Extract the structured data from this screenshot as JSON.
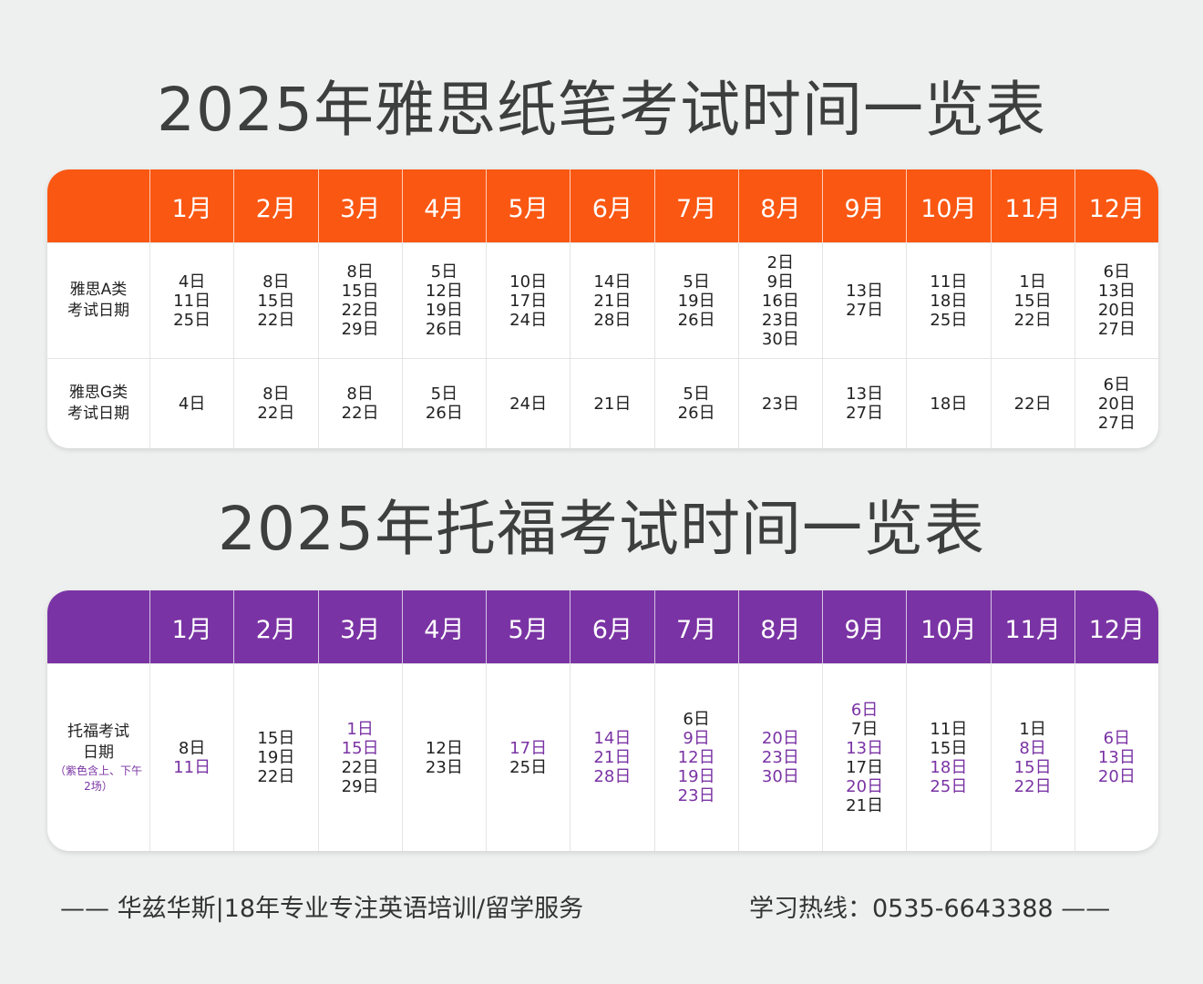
{
  "ielts": {
    "title": "2025年雅思纸笔考试时间一览表",
    "months": [
      "1月",
      "2月",
      "3月",
      "4月",
      "5月",
      "6月",
      "7月",
      "8月",
      "9月",
      "10月",
      "11月",
      "12月"
    ],
    "rows": [
      {
        "label_line1": "雅思A类",
        "label_line2": "考试日期",
        "cells": [
          [
            "4日",
            "11日",
            "25日"
          ],
          [
            "8日",
            "15日",
            "22日"
          ],
          [
            "8日",
            "15日",
            "22日",
            "29日"
          ],
          [
            "5日",
            "12日",
            "19日",
            "26日"
          ],
          [
            "10日",
            "17日",
            "24日"
          ],
          [
            "14日",
            "21日",
            "28日"
          ],
          [
            "5日",
            "19日",
            "26日"
          ],
          [
            "2日",
            "9日",
            "16日",
            "23日",
            "30日"
          ],
          [
            "13日",
            "27日"
          ],
          [
            "11日",
            "18日",
            "25日"
          ],
          [
            "1日",
            "15日",
            "22日"
          ],
          [
            "6日",
            "13日",
            "20日",
            "27日"
          ]
        ]
      },
      {
        "label_line1": "雅思G类",
        "label_line2": "考试日期",
        "cells": [
          [
            "4日"
          ],
          [
            "8日",
            "22日"
          ],
          [
            "8日",
            "22日"
          ],
          [
            "5日",
            "26日"
          ],
          [
            "24日"
          ],
          [
            "21日"
          ],
          [
            "5日",
            "26日"
          ],
          [
            "23日"
          ],
          [
            "13日",
            "27日"
          ],
          [
            "18日"
          ],
          [
            "22日"
          ],
          [
            "6日",
            "20日",
            "27日"
          ]
        ]
      }
    ]
  },
  "toefl": {
    "title": "2025年托福考试时间一览表",
    "months": [
      "1月",
      "2月",
      "3月",
      "4月",
      "5月",
      "6月",
      "7月",
      "8月",
      "9月",
      "10月",
      "11月",
      "12月"
    ],
    "row": {
      "label_line1": "托福考试",
      "label_line2": "日期",
      "note_line1": "（紫色含上、下午",
      "note_line2": "2场）",
      "cells": [
        [
          {
            "d": "8日",
            "p": false
          },
          {
            "d": "11日",
            "p": true
          }
        ],
        [
          {
            "d": "15日",
            "p": false
          },
          {
            "d": "19日",
            "p": false
          },
          {
            "d": "22日",
            "p": false
          }
        ],
        [
          {
            "d": "1日",
            "p": true
          },
          {
            "d": "15日",
            "p": true
          },
          {
            "d": "22日",
            "p": false
          },
          {
            "d": "29日",
            "p": false
          }
        ],
        [
          {
            "d": "12日",
            "p": false
          },
          {
            "d": "23日",
            "p": false
          }
        ],
        [
          {
            "d": "17日",
            "p": true
          },
          {
            "d": "25日",
            "p": false
          }
        ],
        [
          {
            "d": "14日",
            "p": true
          },
          {
            "d": "21日",
            "p": true
          },
          {
            "d": "28日",
            "p": true
          }
        ],
        [
          {
            "d": "6日",
            "p": false
          },
          {
            "d": "9日",
            "p": true
          },
          {
            "d": "12日",
            "p": true
          },
          {
            "d": "19日",
            "p": true
          },
          {
            "d": "23日",
            "p": true
          }
        ],
        [
          {
            "d": "20日",
            "p": true
          },
          {
            "d": "23日",
            "p": true
          },
          {
            "d": "30日",
            "p": true
          }
        ],
        [
          {
            "d": "6日",
            "p": true
          },
          {
            "d": "7日",
            "p": false
          },
          {
            "d": "13日",
            "p": true
          },
          {
            "d": "17日",
            "p": false
          },
          {
            "d": "20日",
            "p": true
          },
          {
            "d": "21日",
            "p": false
          }
        ],
        [
          {
            "d": "11日",
            "p": false
          },
          {
            "d": "15日",
            "p": false
          },
          {
            "d": "18日",
            "p": true
          },
          {
            "d": "25日",
            "p": true
          }
        ],
        [
          {
            "d": "1日",
            "p": false
          },
          {
            "d": "8日",
            "p": true
          },
          {
            "d": "15日",
            "p": true
          },
          {
            "d": "22日",
            "p": true
          }
        ],
        [
          {
            "d": "6日",
            "p": true
          },
          {
            "d": "13日",
            "p": true
          },
          {
            "d": "20日",
            "p": true
          }
        ]
      ]
    }
  },
  "footer": {
    "left": "—— 华兹华斯|18年专业专注英语培训/留学服务",
    "right": "学习热线：0535-6643388 ——"
  },
  "colors": {
    "ielts_header": "#fa5712",
    "toefl_header": "#7a33a4",
    "toefl_highlight": "#7a33a4"
  }
}
